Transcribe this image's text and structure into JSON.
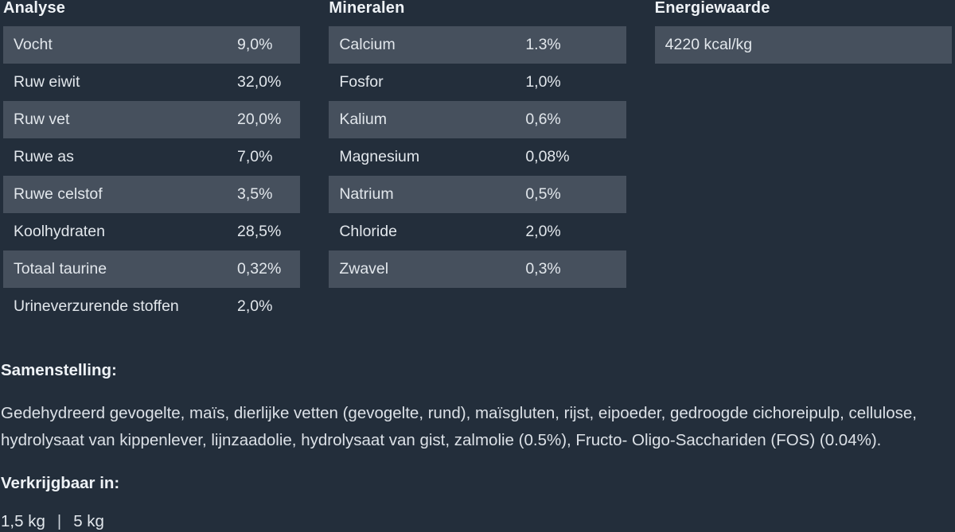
{
  "theme": {
    "background_color": "#232e3b",
    "row_highlight_color": "#46505d",
    "text_color": "#e2e7ec",
    "heading_color": "#eef2f6"
  },
  "tables": [
    {
      "title": "Analyse",
      "rows": [
        {
          "label": "Vocht",
          "value": "9,0%"
        },
        {
          "label": "Ruw eiwit",
          "value": "32,0%"
        },
        {
          "label": "Ruw vet",
          "value": "20,0%"
        },
        {
          "label": "Ruwe as",
          "value": "7,0%"
        },
        {
          "label": "Ruwe celstof",
          "value": "3,5%"
        },
        {
          "label": "Koolhydraten",
          "value": "28,5%"
        },
        {
          "label": "Totaal taurine",
          "value": "0,32%"
        },
        {
          "label": "Urineverzurende stoffen",
          "value": "2,0%"
        }
      ]
    },
    {
      "title": "Mineralen",
      "rows": [
        {
          "label": "Calcium",
          "value": "1.3%"
        },
        {
          "label": "Fosfor",
          "value": "1,0%"
        },
        {
          "label": "Kalium",
          "value": "0,6%"
        },
        {
          "label": "Magnesium",
          "value": "0,08%"
        },
        {
          "label": "Natrium",
          "value": "0,5%"
        },
        {
          "label": "Chloride",
          "value": "2,0%"
        },
        {
          "label": "Zwavel",
          "value": "0,3%"
        }
      ]
    },
    {
      "title": "Energiewaarde",
      "rows": [
        {
          "label": "4220 kcal/kg"
        }
      ]
    }
  ],
  "composition": {
    "title": "Samenstelling:",
    "text": "Gedehydreerd gevogelte, maïs, dierlijke vetten (gevogelte, rund), maïsgluten, rijst, eipoeder, gedroogde cichoreipulp, cellulose, hydrolysaat van kippenlever, lijnzaadolie, hydrolysaat van gist, zalmolie (0.5%), Fructo- Oligo-Sacchariden (FOS) (0.04%)."
  },
  "availability": {
    "title": "Verkrijgbaar in:",
    "sizes": [
      "1,5 kg",
      "5 kg"
    ],
    "separator": "|"
  }
}
